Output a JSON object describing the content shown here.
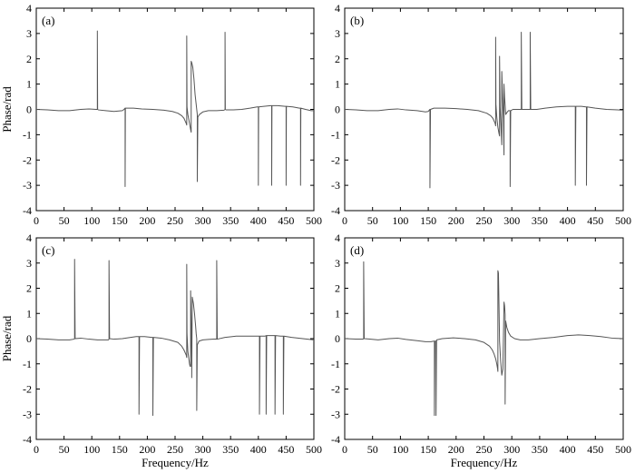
{
  "chart_data": [
    {
      "type": "line",
      "panel_label": "(a)",
      "xlim": [
        0,
        500
      ],
      "ylim": [
        -4,
        4
      ],
      "xticks": [
        0,
        50,
        100,
        150,
        200,
        250,
        300,
        350,
        400,
        450,
        500
      ],
      "yticks": [
        -4,
        -3,
        -2,
        -1,
        0,
        1,
        2,
        3,
        4
      ],
      "xlabel": "",
      "ylabel": "Phase/rad",
      "grid": false,
      "line_color": "#555555",
      "x": [
        0,
        20,
        40,
        60,
        80,
        95,
        108,
        110,
        110.001,
        110.5,
        112,
        125,
        140,
        155,
        158,
        160,
        160.001,
        160.5,
        162,
        175,
        190,
        210,
        230,
        245,
        255,
        262,
        266,
        268,
        270,
        271,
        271.001,
        271.5,
        273,
        276,
        278,
        279,
        279.001,
        280,
        282,
        284,
        286,
        288,
        289.5,
        290,
        290.001,
        291,
        294,
        300,
        310,
        325,
        338,
        339,
        340,
        340.001,
        340.5,
        342,
        355,
        370,
        385,
        398,
        399,
        400,
        400.001,
        400.5,
        410,
        422,
        423,
        424,
        424.001,
        424.5,
        435,
        448,
        449,
        450,
        450.001,
        450.5,
        462,
        474,
        475,
        476,
        476.001,
        476.5,
        485,
        495,
        500
      ],
      "y": [
        0,
        -0.02,
        -0.05,
        -0.05,
        0,
        0.02,
        0,
        0,
        3.1,
        0,
        -0.02,
        -0.05,
        -0.08,
        -0.05,
        0,
        0.05,
        -3.05,
        0.05,
        0.05,
        0.05,
        0.02,
        0,
        -0.03,
        -0.08,
        -0.15,
        -0.25,
        -0.35,
        -0.45,
        -0.55,
        -0.62,
        2.9,
        0.1,
        -0.2,
        -0.55,
        -0.8,
        -0.9,
        1.9,
        1.85,
        1.65,
        1.2,
        0.6,
        0.2,
        -0.1,
        -0.2,
        -2.85,
        -0.3,
        -0.2,
        -0.1,
        -0.05,
        -0.05,
        -0.03,
        -0.02,
        0,
        3.05,
        0,
        -0.02,
        -0.02,
        0,
        0.05,
        0.1,
        0.1,
        0.1,
        -3.0,
        0.1,
        0.12,
        0.15,
        0.15,
        0.15,
        -3.0,
        0.15,
        0.15,
        0.12,
        0.12,
        0.12,
        -3.0,
        0.12,
        0.1,
        0.05,
        0.05,
        0.05,
        -3.0,
        0.05,
        0,
        -0.05,
        -0.05
      ]
    },
    {
      "type": "line",
      "panel_label": "(b)",
      "xlim": [
        0,
        500
      ],
      "ylim": [
        -4,
        4
      ],
      "xticks": [
        0,
        50,
        100,
        150,
        200,
        250,
        300,
        350,
        400,
        450,
        500
      ],
      "yticks": [
        -4,
        -3,
        -2,
        -1,
        0,
        1,
        2,
        3,
        4
      ],
      "xlabel": "",
      "ylabel": "",
      "grid": false,
      "line_color": "#555555",
      "x": [
        0,
        20,
        40,
        60,
        80,
        95,
        110,
        130,
        145,
        150,
        153,
        153.001,
        154,
        160,
        180,
        200,
        220,
        240,
        255,
        262,
        266,
        268,
        270,
        271,
        271.001,
        271.5,
        273,
        275,
        277,
        278,
        278.001,
        279,
        281,
        282,
        282.001,
        283,
        285,
        286,
        286.001,
        287,
        289,
        292,
        294,
        296,
        297,
        297.001,
        298,
        302,
        310,
        315,
        317,
        317.001,
        318,
        325,
        332,
        333,
        333.001,
        334,
        345,
        360,
        380,
        400,
        412,
        414,
        414.001,
        415,
        425,
        433,
        434,
        434.001,
        435,
        450,
        470,
        490,
        500
      ],
      "y": [
        0,
        -0.02,
        -0.05,
        -0.05,
        0,
        0.02,
        -0.02,
        -0.05,
        -0.1,
        -0.08,
        0,
        -3.1,
        0,
        0.05,
        0.05,
        0.03,
        0,
        -0.05,
        -0.15,
        -0.25,
        -0.35,
        -0.45,
        -0.55,
        -0.65,
        2.85,
        0.2,
        -0.3,
        -0.7,
        -0.95,
        -1.05,
        2.1,
        0.1,
        -0.9,
        -1.4,
        1.5,
        0.8,
        -0.4,
        -1.8,
        1.0,
        0.5,
        -0.2,
        -0.1,
        -0.05,
        -0.05,
        -0.05,
        -3.05,
        -0.05,
        0,
        0,
        0,
        0,
        3.05,
        0,
        0,
        0,
        0,
        3.05,
        0,
        0,
        0.05,
        0.1,
        0.12,
        0.12,
        0.12,
        -3.0,
        0.12,
        0.12,
        0.1,
        0.1,
        -3.0,
        0.1,
        0.05,
        0,
        -0.02,
        -0.03
      ]
    },
    {
      "type": "line",
      "panel_label": "(c)",
      "xlim": [
        0,
        500
      ],
      "ylim": [
        -4,
        4
      ],
      "xticks": [
        0,
        50,
        100,
        150,
        200,
        250,
        300,
        350,
        400,
        450,
        500
      ],
      "yticks": [
        -4,
        -3,
        -2,
        -1,
        0,
        1,
        2,
        3,
        4
      ],
      "xlabel": "Frequency/Hz",
      "ylabel": "Phase/rad",
      "grid": false,
      "line_color": "#555555",
      "x": [
        0,
        20,
        40,
        60,
        68,
        69,
        69.001,
        70,
        80,
        95,
        110,
        125,
        130,
        131,
        131.001,
        132,
        140,
        155,
        170,
        180,
        185,
        185.001,
        186,
        195,
        208,
        210,
        210.001,
        211,
        225,
        240,
        255,
        262,
        266,
        268,
        270,
        271,
        271.001,
        271.5,
        273,
        276,
        277,
        278,
        278.001,
        279,
        280,
        280.001,
        281,
        283,
        285,
        287,
        288,
        289,
        289.001,
        290,
        293,
        300,
        310,
        320,
        325,
        325.001,
        326,
        340,
        360,
        380,
        395,
        400,
        402,
        402.001,
        403,
        412,
        414,
        414.001,
        415,
        425,
        430,
        430.001,
        431,
        440,
        445,
        445.001,
        446,
        460,
        480,
        500
      ],
      "y": [
        0,
        -0.02,
        -0.05,
        -0.05,
        -0.02,
        0,
        3.15,
        0,
        0.02,
        -0.02,
        -0.05,
        -0.05,
        -0.05,
        -0.02,
        3.1,
        0,
        -0.02,
        0,
        0.05,
        0.08,
        0.08,
        -3.0,
        0.08,
        0.08,
        0.05,
        0.05,
        -3.05,
        0.05,
        0.02,
        -0.05,
        -0.15,
        -0.3,
        -0.45,
        -0.55,
        -0.65,
        -0.75,
        2.95,
        0.2,
        -0.5,
        -1.0,
        -1.1,
        -1.1,
        1.9,
        0.6,
        -0.8,
        -1.55,
        1.65,
        1.4,
        1.0,
        0.5,
        0.2,
        0,
        -2.85,
        -0.25,
        -0.1,
        -0.05,
        -0.03,
        -0.02,
        -0.02,
        3.1,
        -0.02,
        0.05,
        0.1,
        0.1,
        0.1,
        0.1,
        0.1,
        -3.0,
        0.1,
        0.1,
        0.12,
        -3.0,
        0.12,
        0.12,
        0.12,
        -3.0,
        0.12,
        0.1,
        0.1,
        -3.0,
        0.1,
        0.05,
        0,
        -0.05
      ]
    },
    {
      "type": "line",
      "panel_label": "(d)",
      "xlim": [
        0,
        500
      ],
      "ylim": [
        -4,
        4
      ],
      "xticks": [
        0,
        50,
        100,
        150,
        200,
        250,
        300,
        350,
        400,
        450,
        500
      ],
      "yticks": [
        -4,
        -3,
        -2,
        -1,
        0,
        1,
        2,
        3,
        4
      ],
      "xlabel": "Frequency/Hz",
      "ylabel": "",
      "grid": false,
      "line_color": "#555555",
      "x": [
        0,
        20,
        33,
        34,
        34.001,
        35,
        45,
        60,
        80,
        95,
        110,
        130,
        145,
        155,
        160,
        161,
        161.001,
        162,
        163,
        164,
        164.001,
        165,
        175,
        195,
        215,
        235,
        250,
        260,
        265,
        268,
        271,
        273,
        274.5,
        275,
        275.001,
        276,
        277,
        278,
        280,
        282,
        284,
        286,
        287,
        288,
        288.001,
        289,
        291,
        294,
        298,
        305,
        315,
        330,
        350,
        375,
        400,
        420,
        440,
        460,
        480,
        500
      ],
      "y": [
        0,
        -0.02,
        -0.02,
        0,
        3.05,
        0,
        -0.02,
        -0.05,
        0,
        0.02,
        -0.03,
        -0.08,
        -0.12,
        -0.12,
        -0.1,
        -0.1,
        -3.05,
        -0.1,
        -0.1,
        -0.1,
        -3.05,
        -0.05,
        0,
        0.03,
        0,
        -0.05,
        -0.15,
        -0.3,
        -0.45,
        -0.6,
        -0.8,
        -1.0,
        -1.2,
        -1.3,
        2.7,
        2.6,
        1.3,
        -0.1,
        -0.9,
        -1.45,
        -1.2,
        1.45,
        1.3,
        0.95,
        -2.6,
        0.7,
        0.45,
        0.25,
        0.1,
        0,
        -0.05,
        -0.05,
        0,
        0.05,
        0.12,
        0.15,
        0.12,
        0.08,
        0.02,
        0
      ]
    }
  ]
}
